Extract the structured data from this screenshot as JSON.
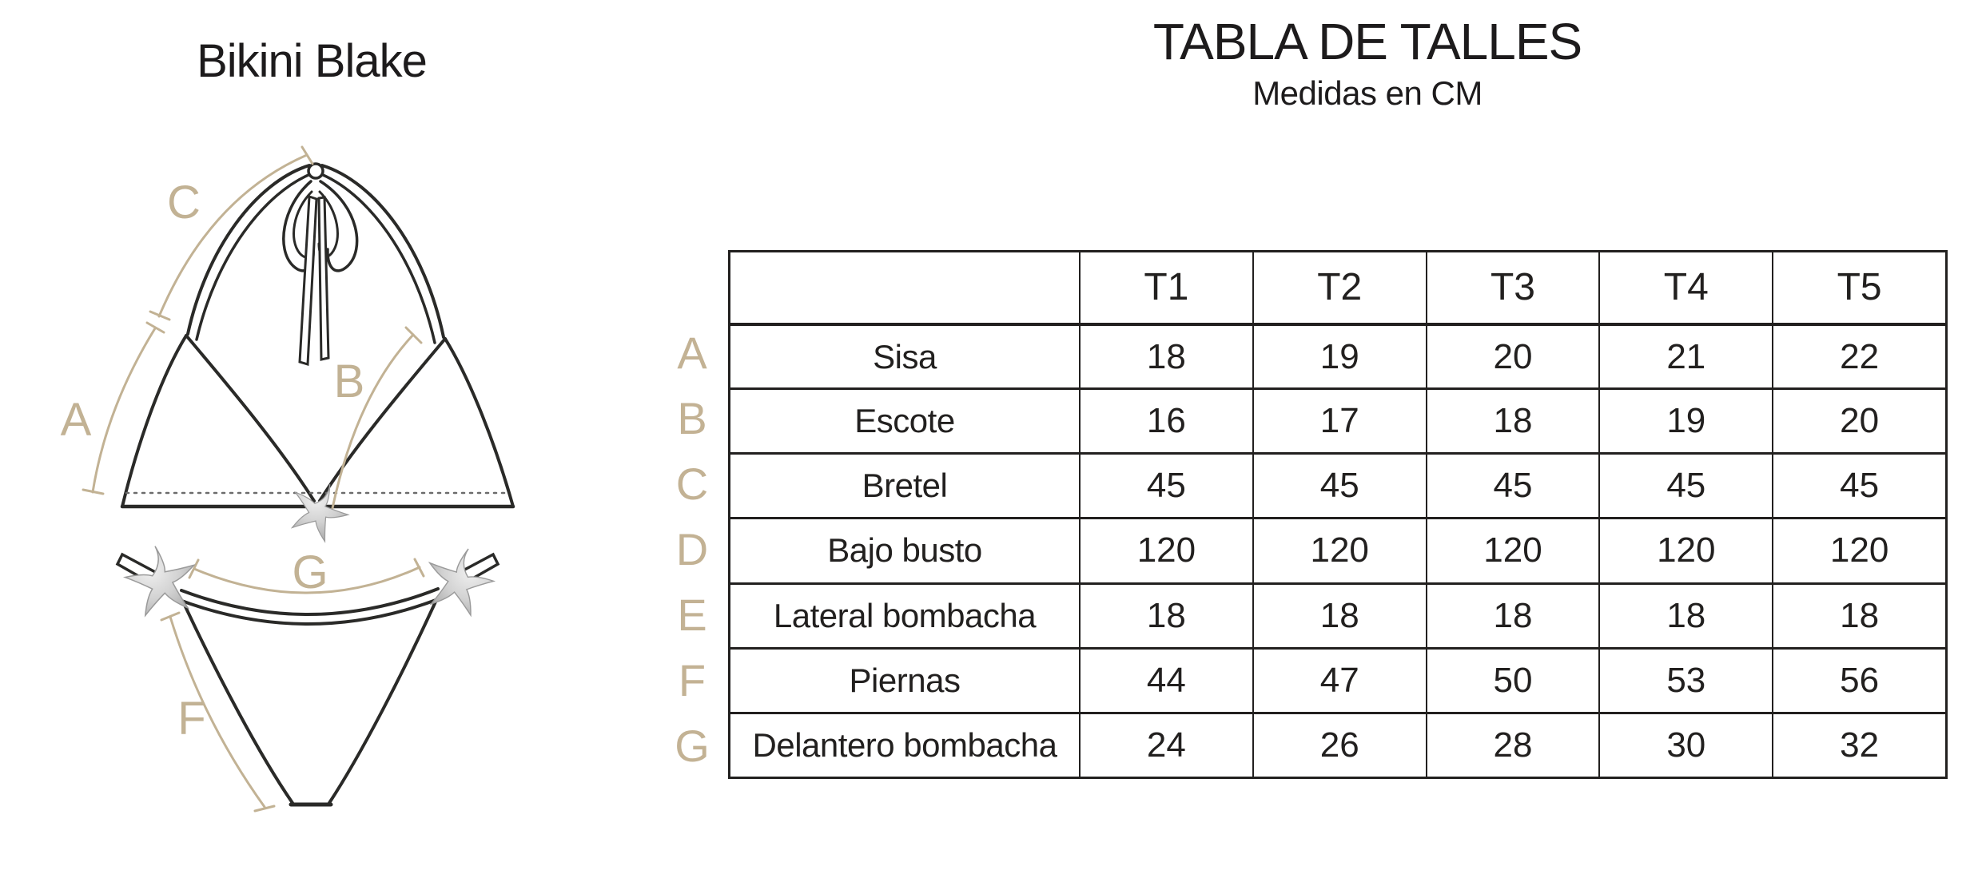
{
  "page": {
    "background": "#ffffff"
  },
  "product": {
    "title": "Bikini Blake"
  },
  "size_chart": {
    "title": "TABLA DE TALLES",
    "subtitle": "Medidas en CM",
    "columns": [
      "T1",
      "T2",
      "T3",
      "T4",
      "T5"
    ],
    "rows": [
      {
        "letter": "A",
        "label": "Sisa",
        "values": [
          "18",
          "19",
          "20",
          "21",
          "22"
        ]
      },
      {
        "letter": "B",
        "label": "Escote",
        "values": [
          "16",
          "17",
          "18",
          "19",
          "20"
        ]
      },
      {
        "letter": "C",
        "label": "Bretel",
        "values": [
          "45",
          "45",
          "45",
          "45",
          "45"
        ]
      },
      {
        "letter": "D",
        "label": "Bajo busto",
        "values": [
          "120",
          "120",
          "120",
          "120",
          "120"
        ]
      },
      {
        "letter": "E",
        "label": "Lateral bombacha",
        "values": [
          "18",
          "18",
          "18",
          "18",
          "18"
        ]
      },
      {
        "letter": "F",
        "label": "Piernas",
        "values": [
          "44",
          "47",
          "50",
          "53",
          "56"
        ]
      },
      {
        "letter": "G",
        "label": "Delantero bombacha",
        "values": [
          "24",
          "26",
          "28",
          "30",
          "32"
        ]
      }
    ]
  },
  "diagram": {
    "labels": {
      "a": "A",
      "b": "B",
      "c": "C",
      "f": "F",
      "g": "G"
    },
    "colors": {
      "measure_tan": "#c2b294",
      "outline": "#2a2a28",
      "starfish": "#c9c9c9",
      "text": "#1d1b1c"
    }
  },
  "chart_data": {
    "type": "table",
    "title": "TABLA DE TALLES",
    "subtitle": "Medidas en CM",
    "unit": "cm",
    "columns": [
      "T1",
      "T2",
      "T3",
      "T4",
      "T5"
    ],
    "row_labels": [
      "Sisa",
      "Escote",
      "Bretel",
      "Bajo busto",
      "Lateral bombacha",
      "Piernas",
      "Delantero bombacha"
    ],
    "row_letters": [
      "A",
      "B",
      "C",
      "D",
      "E",
      "F",
      "G"
    ],
    "values": [
      [
        18,
        19,
        20,
        21,
        22
      ],
      [
        16,
        17,
        18,
        19,
        20
      ],
      [
        45,
        45,
        45,
        45,
        45
      ],
      [
        120,
        120,
        120,
        120,
        120
      ],
      [
        18,
        18,
        18,
        18,
        18
      ],
      [
        44,
        47,
        50,
        53,
        56
      ],
      [
        24,
        26,
        28,
        30,
        32
      ]
    ]
  }
}
